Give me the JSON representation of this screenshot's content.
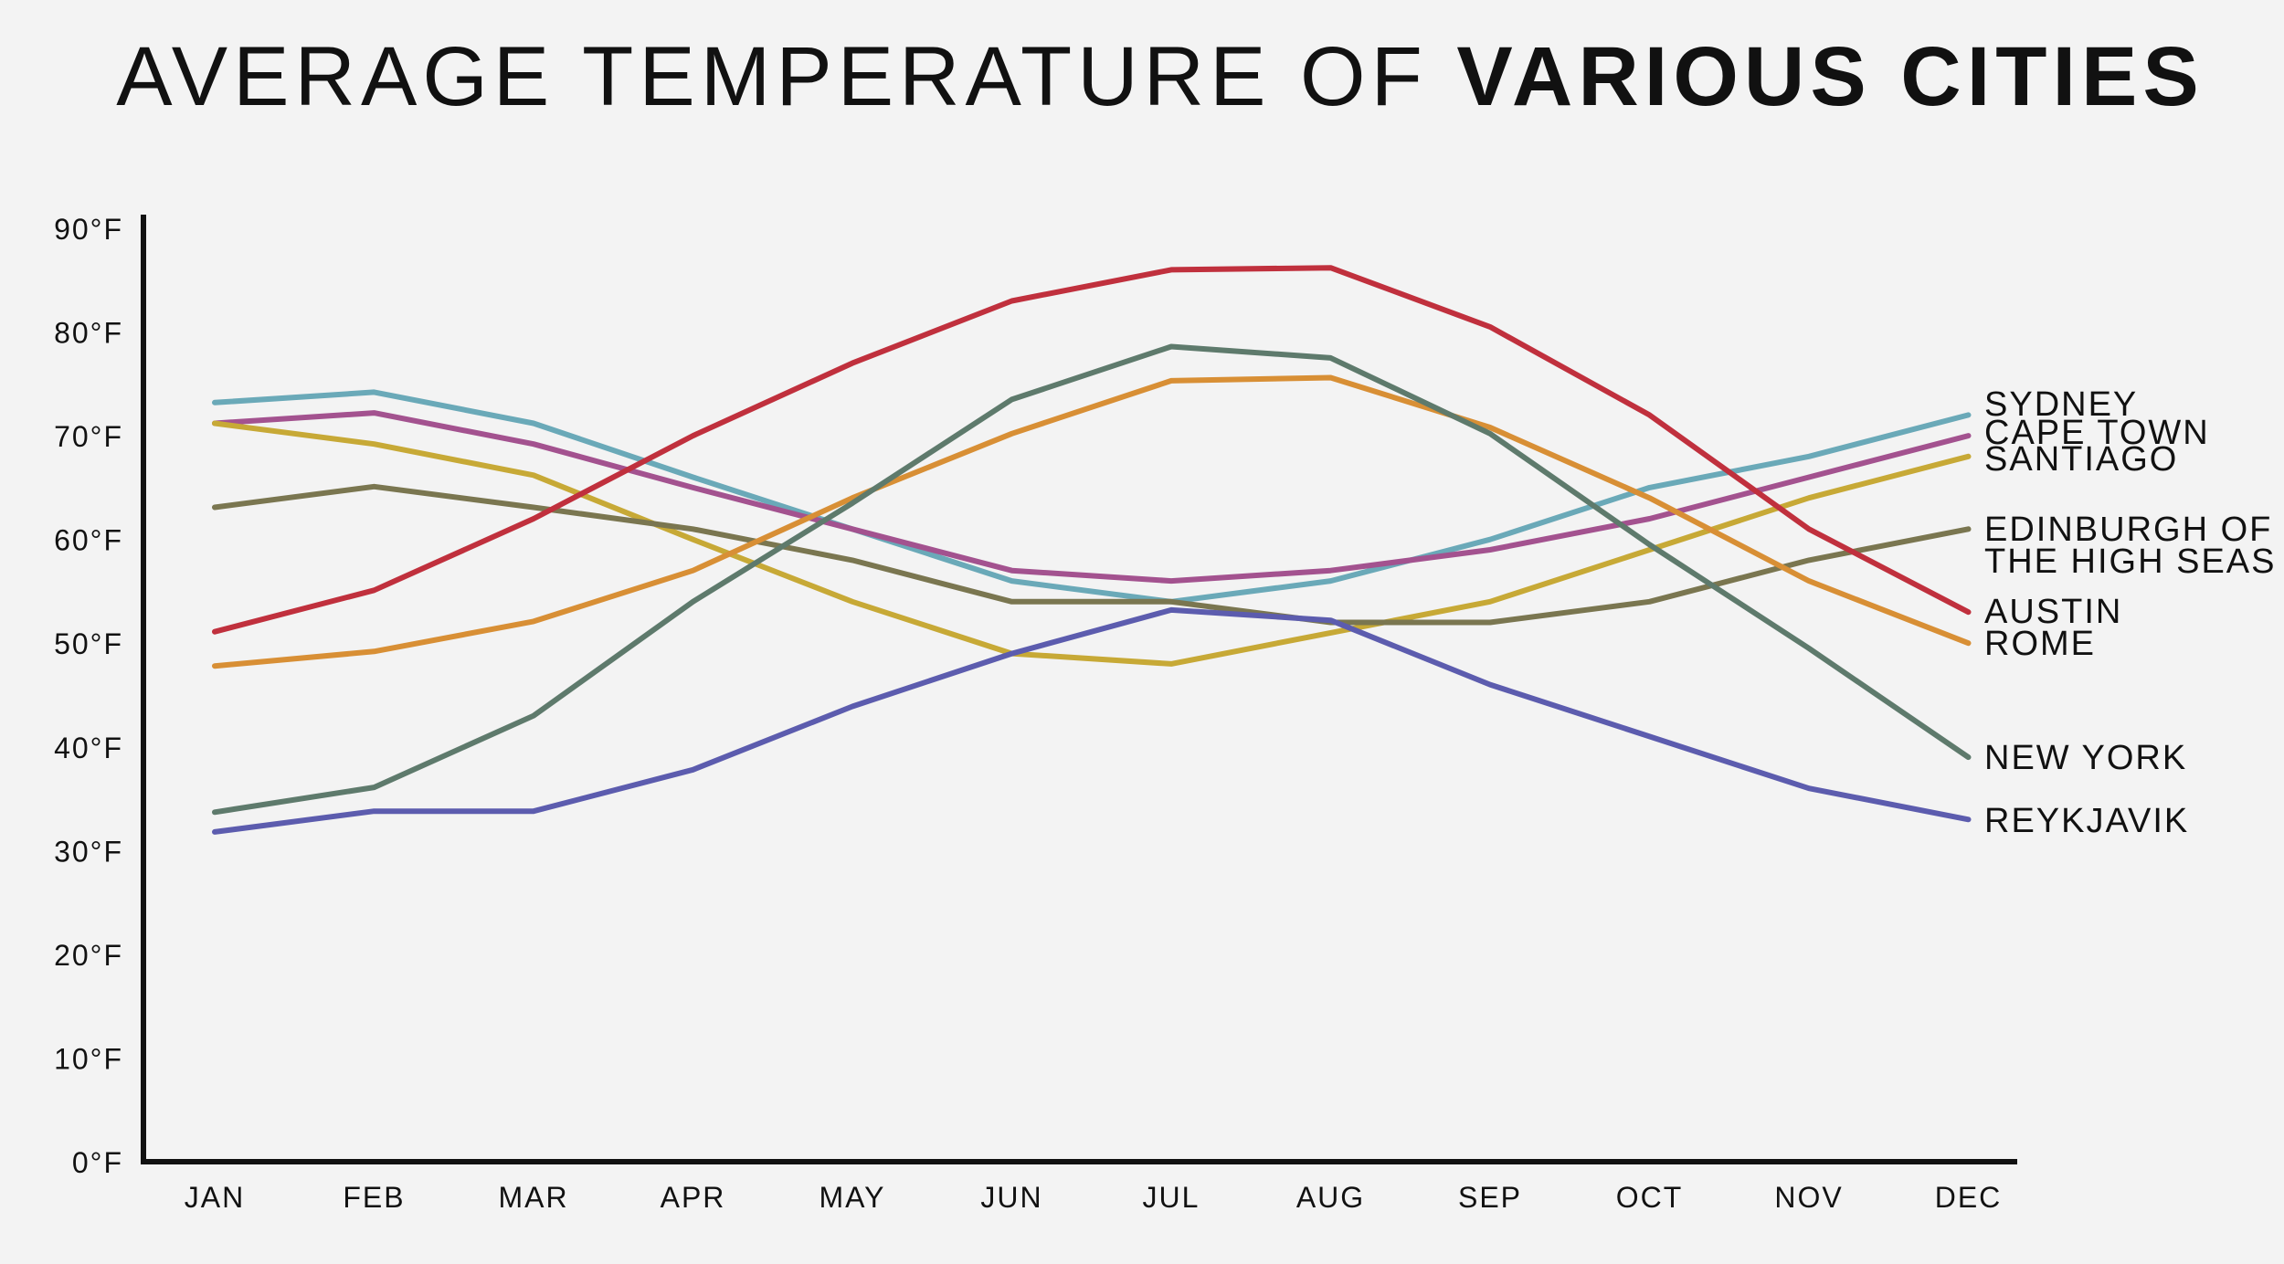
{
  "chart_data": {
    "type": "line",
    "title_part1": "AVERAGE TEMPERATURE OF ",
    "title_part2": "VARIOUS CITIES",
    "xlabel": "",
    "ylabel": "",
    "ylim": [
      0,
      90
    ],
    "grid": false,
    "legend": "inline-right",
    "categories": [
      "JAN",
      "FEB",
      "MAR",
      "APR",
      "MAY",
      "JUN",
      "JUL",
      "AUG",
      "SEP",
      "OCT",
      "NOV",
      "DEC"
    ],
    "yticks": [
      {
        "value": 0,
        "label": "0°F"
      },
      {
        "value": 10,
        "label": "10°F"
      },
      {
        "value": 20,
        "label": "20°F"
      },
      {
        "value": 30,
        "label": "30°F"
      },
      {
        "value": 40,
        "label": "40°F"
      },
      {
        "value": 50,
        "label": "50°F"
      },
      {
        "value": 60,
        "label": "60°F"
      },
      {
        "value": 70,
        "label": "70°F"
      },
      {
        "value": 80,
        "label": "80°F"
      },
      {
        "value": 90,
        "label": "90°F"
      }
    ],
    "series": [
      {
        "name": "SYDNEY",
        "label_lines": [
          "SYDNEY"
        ],
        "color": "#6aa9b8",
        "values": [
          73.2,
          74.2,
          71.2,
          66,
          61,
          56,
          54,
          56,
          60,
          65,
          68,
          72
        ]
      },
      {
        "name": "CAPE TOWN",
        "label_lines": [
          "CAPE TOWN"
        ],
        "color": "#a3528f",
        "values": [
          71.2,
          72.2,
          69.2,
          65,
          61,
          57,
          56,
          57,
          59,
          62,
          66,
          70
        ]
      },
      {
        "name": "SANTIAGO",
        "label_lines": [
          "SANTIAGO"
        ],
        "color": "#c7a936",
        "values": [
          71.2,
          69.2,
          66.2,
          60,
          54,
          49,
          48,
          51,
          54,
          59,
          64,
          68
        ]
      },
      {
        "name": "EDINBURGH OF THE HIGH SEAS",
        "label_lines": [
          "EDINBURGH OF",
          "THE HIGH SEAS"
        ],
        "color": "#7a7650",
        "values": [
          63.1,
          65.1,
          63.1,
          61,
          58,
          54,
          54,
          52,
          52,
          54,
          58,
          61
        ]
      },
      {
        "name": "AUSTIN",
        "label_lines": [
          "AUSTIN"
        ],
        "color": "#c0303d",
        "values": [
          51.1,
          55.1,
          62,
          70,
          77,
          83,
          86,
          86.2,
          80.5,
          72,
          61,
          53
        ]
      },
      {
        "name": "ROME",
        "label_lines": [
          "ROME"
        ],
        "color": "#d88f35",
        "values": [
          47.8,
          49.2,
          52.1,
          57,
          64,
          70.2,
          75.3,
          75.6,
          70.8,
          64,
          56,
          50
        ]
      },
      {
        "name": "NEW YORK",
        "label_lines": [
          "NEW YORK"
        ],
        "color": "#5e7a6c",
        "values": [
          33.7,
          36.1,
          43,
          54,
          63.5,
          73.5,
          78.6,
          77.5,
          70.2,
          59.5,
          49.5,
          39
        ]
      },
      {
        "name": "REYKJAVIK",
        "label_lines": [
          "REYKJAVIK"
        ],
        "color": "#5c5cae",
        "values": [
          31.8,
          33.8,
          33.8,
          37.8,
          43.9,
          49,
          53.2,
          52.2,
          46,
          41,
          36,
          33
        ]
      }
    ]
  }
}
